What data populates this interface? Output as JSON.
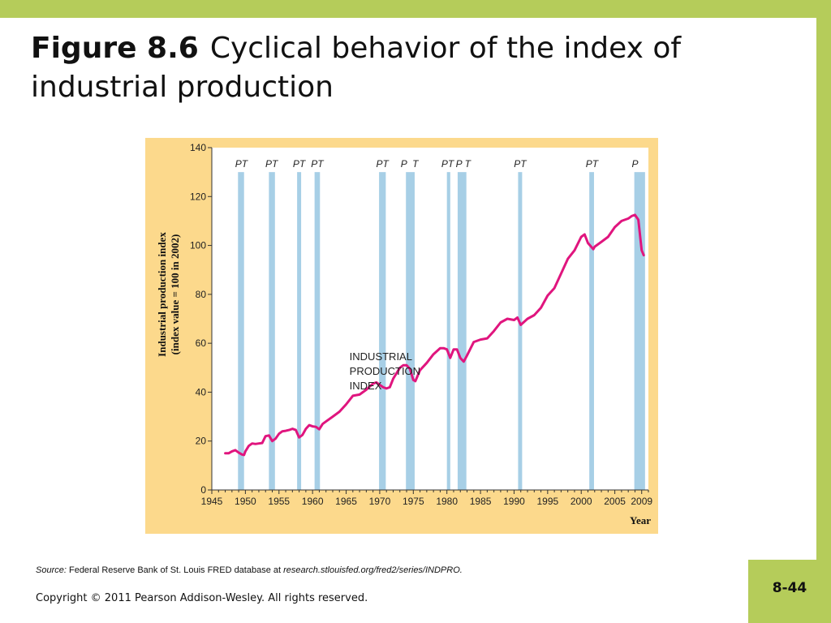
{
  "slide": {
    "title_number": "Figure 8.6",
    "title_text": "Cyclical behavior of the index of industrial production",
    "source_label": "Source:",
    "source_text": " Federal Reserve Bank of St. Louis FRED database at ",
    "source_url": "research.stlouisfed.org/fred2/series/INDPRO.",
    "copyright": "Copyright © 2011 Pearson Addison-Wesley. All rights reserved.",
    "page_number": "8-44"
  },
  "colors": {
    "accent_bar": "#b5cc5a",
    "chart_background": "#fcd98c",
    "plot_background": "#ffffff",
    "recession_band": "#a7cfe6",
    "series_line": "#e0157e"
  },
  "chart_data": {
    "type": "line",
    "title": "",
    "xlabel": "Year",
    "ylabel_line1": "Industrial production index",
    "ylabel_line2": "(index value = 100 in 2002)",
    "xlim": [
      1945,
      2010
    ],
    "ylim": [
      0,
      140
    ],
    "x_ticks": [
      1945,
      1950,
      1955,
      1960,
      1965,
      1970,
      1975,
      1980,
      1985,
      1990,
      1995,
      2000,
      2005,
      2009
    ],
    "y_ticks": [
      0,
      20,
      40,
      60,
      80,
      100,
      120,
      140
    ],
    "grid": false,
    "series_annotation": [
      "INDUSTRIAL",
      "PRODUCTION",
      "INDEX"
    ],
    "series_annotation_anchor": {
      "x": 1965.5,
      "y": 53
    },
    "recessions": [
      {
        "peak": 1948.9,
        "trough": 1949.8
      },
      {
        "peak": 1953.5,
        "trough": 1954.4
      },
      {
        "peak": 1957.7,
        "trough": 1958.3
      },
      {
        "peak": 1960.3,
        "trough": 1961.1
      },
      {
        "peak": 1969.9,
        "trough": 1970.9
      },
      {
        "peak": 1973.9,
        "trough": 1975.2
      },
      {
        "peak": 1980.0,
        "trough": 1980.5
      },
      {
        "peak": 1981.6,
        "trough": 1982.9
      },
      {
        "peak": 1990.6,
        "trough": 1991.2
      },
      {
        "peak": 2001.2,
        "trough": 2001.9
      },
      {
        "peak": 2007.9,
        "trough": 2009.5
      }
    ],
    "recession_labels": [
      {
        "text": "PT",
        "x": 1949.4
      },
      {
        "text": "PT",
        "x": 1953.9
      },
      {
        "text": "PT",
        "x": 1958.0
      },
      {
        "text": "PT",
        "x": 1960.7
      },
      {
        "text": "PT",
        "x": 1970.4
      },
      {
        "text": "P",
        "x": 1973.6
      },
      {
        "text": "T",
        "x": 1975.3
      },
      {
        "text": "PT",
        "x": 1980.1
      },
      {
        "text": "P",
        "x": 1981.8
      },
      {
        "text": "T",
        "x": 1983.1
      },
      {
        "text": "PT",
        "x": 1990.9
      },
      {
        "text": "PT",
        "x": 2001.6
      },
      {
        "text": "P",
        "x": 2008.0
      }
    ],
    "series": [
      {
        "name": "",
        "x": [
          1947,
          1947.5,
          1948,
          1948.5,
          1949,
          1949.5,
          1949.8,
          1950,
          1950.5,
          1951,
          1951.5,
          1952,
          1952.5,
          1953,
          1953.5,
          1954,
          1954.5,
          1955,
          1955.5,
          1956,
          1956.5,
          1957,
          1957.5,
          1958,
          1958.5,
          1959,
          1959.5,
          1960,
          1960.5,
          1961,
          1961.5,
          1962,
          1963,
          1964,
          1965,
          1966,
          1967,
          1968,
          1969,
          1969.5,
          1970,
          1970.5,
          1971,
          1971.5,
          1972,
          1973,
          1973.5,
          1974,
          1974.5,
          1975,
          1975.3,
          1976,
          1977,
          1978,
          1979,
          1979.5,
          1980,
          1980.5,
          1981,
          1981.5,
          1982,
          1982.5,
          1983,
          1984,
          1985,
          1986,
          1987,
          1988,
          1989,
          1990,
          1990.5,
          1991,
          1992,
          1993,
          1994,
          1995,
          1996,
          1997,
          1998,
          1999,
          2000,
          2000.5,
          2001,
          2001.8,
          2002,
          2003,
          2004,
          2005,
          2006,
          2007,
          2007.5,
          2008,
          2008.5,
          2009,
          2009.3
        ],
        "y": [
          15,
          15,
          15.8,
          16.3,
          15.3,
          14.5,
          14.3,
          15.8,
          18,
          19,
          18.8,
          19,
          19.2,
          22,
          22.3,
          20,
          21,
          23,
          24,
          24.2,
          24.5,
          25,
          24.5,
          21.5,
          22.5,
          25,
          26.5,
          26,
          25.8,
          24.8,
          27,
          28,
          30,
          32,
          35,
          38.5,
          39,
          41,
          43.5,
          44,
          43,
          42,
          41.5,
          42,
          45.5,
          50,
          51,
          51,
          49.5,
          45,
          44.5,
          49,
          52,
          55.5,
          58,
          58,
          57.5,
          54,
          57.5,
          57.5,
          54,
          52.5,
          55,
          60.5,
          61.5,
          62,
          65,
          68.5,
          70,
          69.5,
          70.5,
          67.5,
          70,
          71.5,
          74.5,
          79.5,
          82.5,
          88.5,
          94.5,
          98,
          103.5,
          104.5,
          101,
          98.5,
          99.5,
          101.5,
          103.5,
          107.5,
          110,
          111,
          112,
          112.5,
          110.5,
          98,
          96
        ]
      }
    ]
  }
}
